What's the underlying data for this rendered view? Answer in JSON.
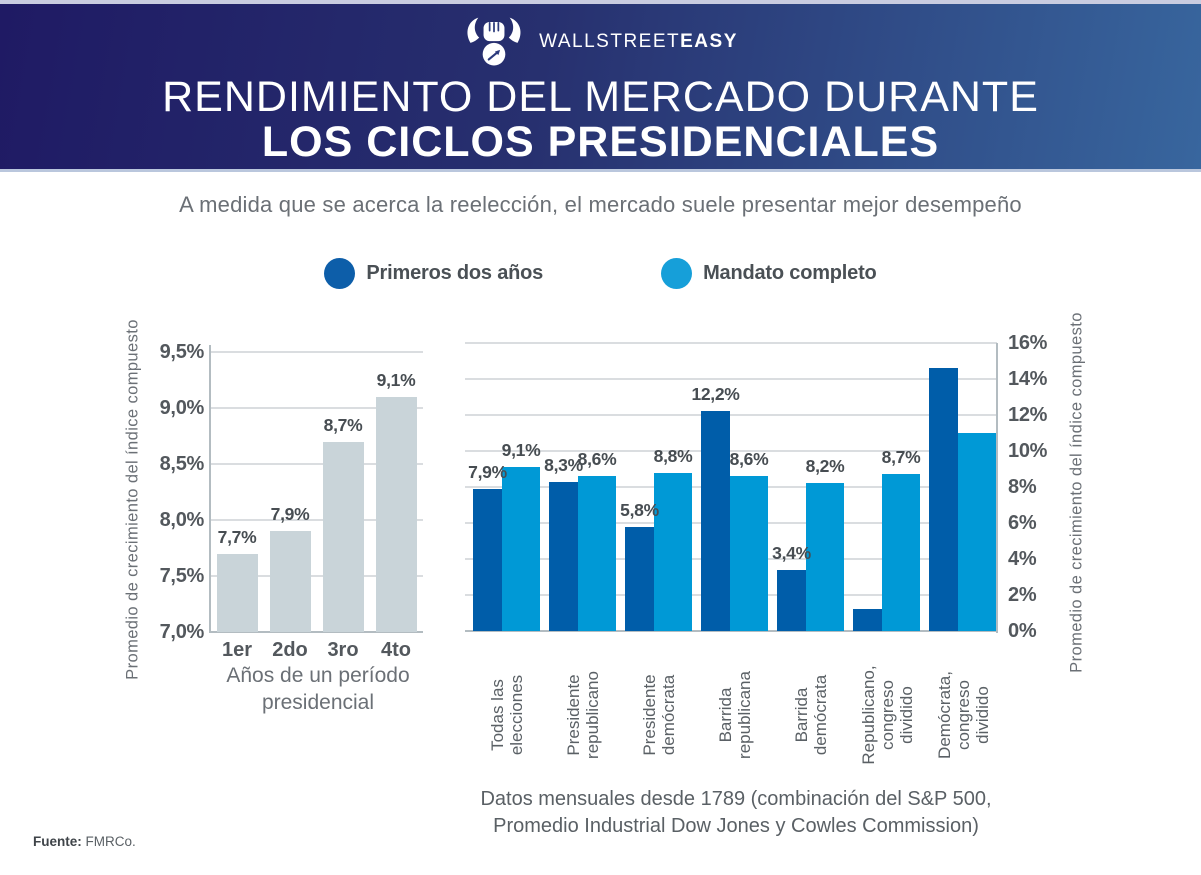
{
  "header": {
    "brand_regular": "WALLSTREET",
    "brand_bold": "EASY",
    "title_line1": "RENDIMIENTO DEL MERCADO DURANTE",
    "title_line2": "LOS CICLOS PRESIDENCIALES"
  },
  "subtitle": "A medida que se acerca la reelección, el mercado suele presentar mejor desempeño",
  "legend": [
    {
      "label": "Primeros dos años",
      "color": "#0d5ea9"
    },
    {
      "label": "Mandato completo",
      "color": "#169fd9"
    }
  ],
  "footer": {
    "source_label": "Fuente:",
    "source_value": "FMRCo."
  },
  "colors": {
    "header_gradient_left": "#1f1a64",
    "header_gradient_right": "#38669e",
    "bar_gray": "#c9d4d9",
    "bar_dark_blue": "#005da9",
    "bar_light_blue": "#0099d6",
    "gridline": "#dadde0",
    "axis": "#b3bcc1",
    "tick_text": "#53585d",
    "value_text": "#474d52",
    "muted_text": "#6b7076"
  },
  "chart_data": [
    {
      "type": "bar",
      "name": "years-of-presidential-term",
      "categories": [
        "1er",
        "2do",
        "3ro",
        "4to"
      ],
      "values": [
        7.7,
        7.9,
        8.7,
        9.1
      ],
      "value_labels": [
        "7,7%",
        "7,9%",
        "8,7%",
        "9,1%"
      ],
      "xlabel": "Años de un período\npresidencial",
      "ylabel": "Promedio de crecimiento del índice compuesto",
      "ylim": [
        7.0,
        9.5
      ],
      "yticks": [
        7.0,
        7.5,
        8.0,
        8.5,
        9.0,
        9.5
      ],
      "ytick_labels": [
        "7,0%",
        "7,5%",
        "8,0%",
        "8,5%",
        "9,0%",
        "9,5%"
      ],
      "grid": true,
      "legend_position": "none"
    },
    {
      "type": "bar",
      "name": "election-outcomes",
      "categories": [
        "Todas las\nelecciones",
        "Presidente\nrepublicano",
        "Presidente\ndemócrata",
        "Barrida\nrepublicana",
        "Barrida\ndemócrata",
        "Republicano,\ncongreso\ndividido",
        "Demócrata,\ncongreso\ndividido"
      ],
      "series": [
        {
          "name": "Primeros dos años",
          "values": [
            7.9,
            8.3,
            5.8,
            12.2,
            3.4,
            1.2,
            14.6
          ],
          "value_labels": [
            "7,9%",
            "8,3%",
            "5,8%",
            "12,2%",
            "3,4%",
            "",
            ""
          ]
        },
        {
          "name": "Mandato completo",
          "values": [
            9.1,
            8.6,
            8.8,
            8.6,
            8.2,
            8.7,
            11.0
          ],
          "value_labels": [
            "9,1%",
            "8,6%",
            "8,8%",
            "8,6%",
            "8,2%",
            "8,7%",
            ""
          ]
        }
      ],
      "ylabel": "Promedio de crecimiento del índice compuesto",
      "ylim": [
        0,
        16
      ],
      "yticks": [
        0,
        2,
        4,
        6,
        8,
        10,
        12,
        14,
        16
      ],
      "ytick_labels": [
        "0%",
        "2%",
        "4%",
        "6%",
        "8%",
        "10%",
        "12%",
        "14%",
        "16%"
      ],
      "grid": true,
      "legend_position": "top",
      "caption": "Datos mensuales desde 1789 (combinación del S&P 500,\nPromedio Industrial Dow Jones y Cowles Commission)"
    }
  ]
}
